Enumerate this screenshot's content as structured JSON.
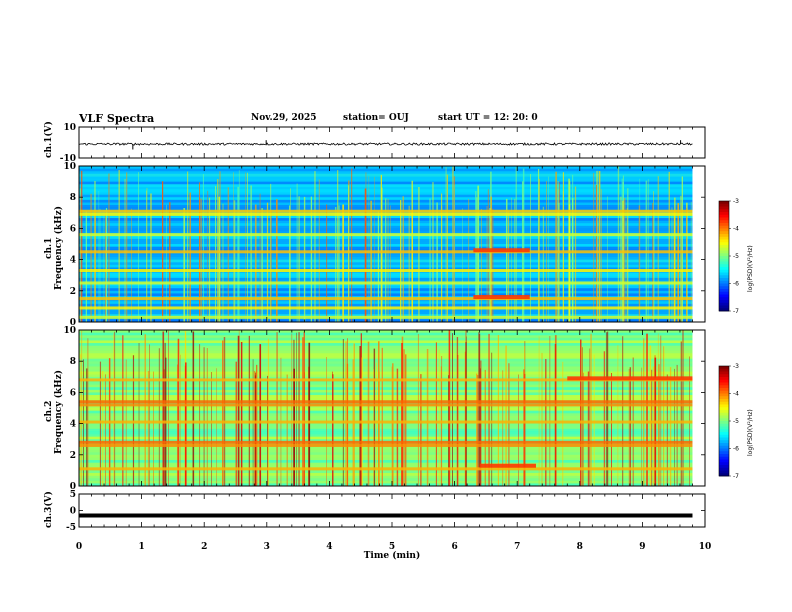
{
  "header": {
    "title": "VLF Spectra",
    "date": "Nov.29, 2025",
    "station": "station= OUJ",
    "start": "start  UT =   12: 20: 0"
  },
  "chart_data": [
    {
      "type": "line",
      "name": "ch1-waveform",
      "ylabel": "ch.1(V)",
      "ylim": [
        -10,
        10
      ],
      "yticks": [
        "10",
        "-10"
      ],
      "x": [
        0.0,
        0.85,
        0.86,
        2.98,
        2.99,
        5.9,
        9.6,
        9.61,
        9.8
      ],
      "y": [
        -1.0,
        -1.0,
        -4.5,
        -1.0,
        1.5,
        -1.0,
        -1.0,
        1.5,
        -1.0
      ],
      "note": "noisy signal near -1 V with brief spikes"
    },
    {
      "type": "heatmap",
      "name": "ch1-spectrogram",
      "ylabel_line1": "ch.1",
      "ylabel_line2": "Frequency (kHz)",
      "ylim": [
        0,
        10
      ],
      "yticks": [
        "0",
        "2",
        "4",
        "6",
        "8",
        "10"
      ],
      "xlim": [
        0,
        10
      ],
      "colorbar": {
        "label": "log(PSD)(V²/Hz)",
        "range": [
          -7,
          -3
        ],
        "ticks": [
          "-3",
          "-4",
          "-5",
          "-6",
          "-7"
        ]
      },
      "bands_khz": [
        0.3,
        0.9,
        1.5,
        2.5,
        3.3,
        4.5,
        5.6,
        6.9,
        7.1
      ],
      "features": [
        {
          "t_start": 6.3,
          "t_end": 7.2,
          "freq_khz": 4.6
        },
        {
          "t_start": 6.3,
          "t_end": 7.2,
          "freq_khz": 1.6
        }
      ]
    },
    {
      "type": "heatmap",
      "name": "ch2-spectrogram",
      "ylabel_line1": "ch.2",
      "ylabel_line2": "Frequency (kHz)",
      "ylim": [
        0,
        10
      ],
      "yticks": [
        "0",
        "2",
        "4",
        "6",
        "8",
        "10"
      ],
      "xlim": [
        0,
        10
      ],
      "colorbar": {
        "label": "log(PSD)(V²/Hz)",
        "range": [
          -7,
          -3
        ],
        "ticks": [
          "-3",
          "-4",
          "-5",
          "-6",
          "-7"
        ]
      },
      "bands_khz": [
        1.1,
        2.6,
        2.8,
        4.1,
        5.2,
        5.4,
        6.8
      ],
      "features": [
        {
          "t_start": 7.8,
          "t_end": 9.8,
          "freq_khz": 6.9
        },
        {
          "t_start": 6.4,
          "t_end": 7.3,
          "freq_khz": 1.3
        }
      ]
    },
    {
      "type": "line",
      "name": "ch3-waveform",
      "ylabel": "ch.3(V)",
      "ylim": [
        -5,
        5
      ],
      "yticks": [
        "5",
        "0",
        "-5"
      ],
      "x": [
        0,
        9.8
      ],
      "y": [
        -1.5,
        -1.5
      ],
      "note": "flat thick line"
    }
  ],
  "xaxis": {
    "label": "Time  (min)",
    "ticks": [
      "0",
      "1",
      "2",
      "3",
      "4",
      "5",
      "6",
      "7",
      "8",
      "9",
      "10"
    ],
    "xlim": [
      0,
      10
    ],
    "data_end": 9.8
  }
}
